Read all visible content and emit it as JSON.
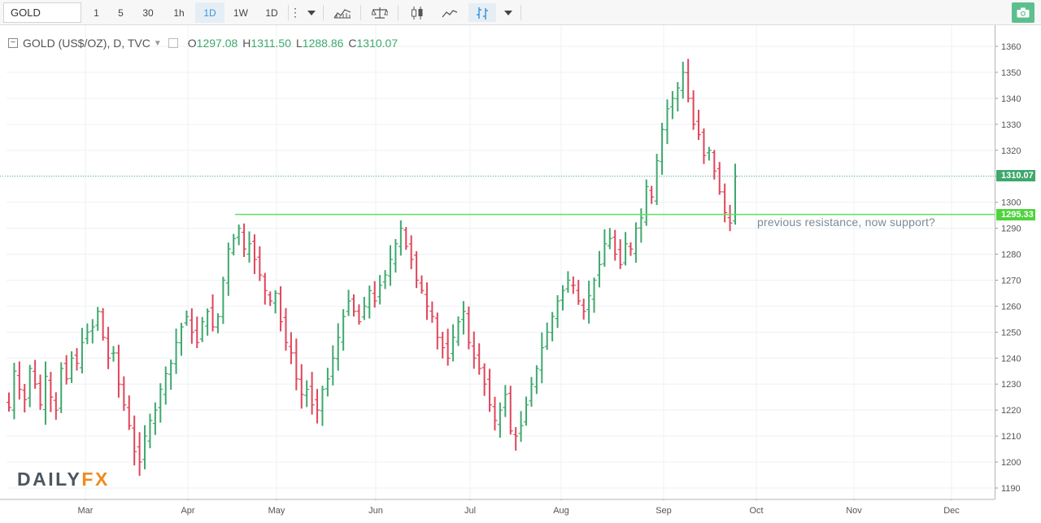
{
  "toolbar": {
    "symbol": "GOLD",
    "intervals": [
      {
        "label": "1",
        "active": false
      },
      {
        "label": "5",
        "active": false
      },
      {
        "label": "30",
        "active": false
      },
      {
        "label": "1h",
        "active": false
      },
      {
        "label": "1D",
        "active": true
      },
      {
        "label": "1W",
        "active": false
      },
      {
        "label": "1D",
        "active": false
      }
    ],
    "icons": [
      "more-vertical-icon",
      "chevron-down-icon",
      "indicators-icon",
      "compare-icon",
      "candles-icon",
      "line-chart-icon",
      "bars-icon",
      "chevron-down-icon",
      "camera-icon"
    ]
  },
  "legend": {
    "title": "GOLD (US$/OZ), D, TVC",
    "open_key": "O",
    "open": "1297.08",
    "high_key": "H",
    "high": "1311.50",
    "low_key": "L",
    "low": "1288.86",
    "close_key": "C",
    "close": "1310.07"
  },
  "annotation": "previous resistance, now support?",
  "logo": {
    "main": "DAILY",
    "accent": "FX"
  },
  "price_tags": {
    "last": "1310.07",
    "support": "1295.33"
  },
  "colors": {
    "up": "#3ea86d",
    "down": "#e0455a",
    "support_line": "#5be25b",
    "last_line": "#4ab3a9",
    "tag_last": "#3ea86d",
    "tag_support": "#4ed43c"
  },
  "chart_data": {
    "type": "bar",
    "style": "ohlc",
    "y_ticks": [
      1190,
      1200,
      1210,
      1220,
      1230,
      1240,
      1250,
      1260,
      1270,
      1280,
      1290,
      1300,
      1310,
      1320,
      1330,
      1340,
      1350,
      1360
    ],
    "x_ticks": [
      "Mar",
      "Apr",
      "May",
      "Jun",
      "Jul",
      "Aug",
      "Sep",
      "Oct",
      "Nov",
      "Dec"
    ],
    "ylim": [
      1185,
      1365
    ],
    "grid": true,
    "last_price": 1310.07,
    "support_level": 1295.33,
    "closes": [
      1221,
      1235,
      1228,
      1224,
      1236,
      1230,
      1222,
      1233,
      1225,
      1220,
      1236,
      1232,
      1240,
      1238,
      1246,
      1250,
      1252,
      1258,
      1248,
      1240,
      1242,
      1230,
      1222,
      1214,
      1204,
      1200,
      1210,
      1216,
      1220,
      1228,
      1234,
      1238,
      1246,
      1252,
      1256,
      1250,
      1246,
      1254,
      1258,
      1252,
      1256,
      1270,
      1282,
      1286,
      1290,
      1282,
      1284,
      1278,
      1272,
      1266,
      1262,
      1265,
      1254,
      1246,
      1242,
      1232,
      1226,
      1228,
      1222,
      1220,
      1228,
      1232,
      1240,
      1248,
      1256,
      1262,
      1258,
      1254,
      1260,
      1266,
      1262,
      1268,
      1272,
      1278,
      1284,
      1290,
      1283,
      1278,
      1270,
      1266,
      1260,
      1256,
      1248,
      1244,
      1240,
      1248,
      1254,
      1258,
      1246,
      1240,
      1236,
      1230,
      1222,
      1216,
      1220,
      1226,
      1212,
      1210,
      1214,
      1222,
      1230,
      1236,
      1244,
      1250,
      1256,
      1262,
      1266,
      1270,
      1268,
      1262,
      1258,
      1264,
      1270,
      1276,
      1284,
      1286,
      1280,
      1276,
      1284,
      1282,
      1290,
      1294,
      1306,
      1302,
      1316,
      1328,
      1336,
      1340,
      1344,
      1350,
      1340,
      1330,
      1326,
      1318,
      1320,
      1312,
      1304,
      1296,
      1292,
      1310
    ]
  }
}
